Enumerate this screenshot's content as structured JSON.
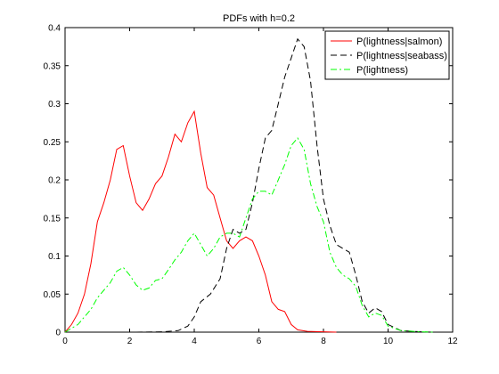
{
  "chart_data": {
    "type": "line",
    "title": "PDFs with h=0.2",
    "xlabel": "",
    "ylabel": "",
    "xlim": [
      0,
      12
    ],
    "ylim": [
      0,
      0.4
    ],
    "xticks": [
      "0",
      "2",
      "4",
      "6",
      "8",
      "10",
      "12"
    ],
    "yticks": [
      "0",
      "0.05",
      "0.1",
      "0.15",
      "0.2",
      "0.25",
      "0.3",
      "0.35",
      "0.4"
    ],
    "grid": false,
    "legend_position": "top-right",
    "series": [
      {
        "name": "P(lightness|salmon)",
        "color": "#ff0000",
        "dash": "solid",
        "x": [
          0,
          0.2,
          0.4,
          0.6,
          0.8,
          1.0,
          1.2,
          1.4,
          1.6,
          1.8,
          2.0,
          2.2,
          2.4,
          2.6,
          2.8,
          3.0,
          3.2,
          3.4,
          3.6,
          3.8,
          4.0,
          4.2,
          4.4,
          4.6,
          4.8,
          5.0,
          5.2,
          5.4,
          5.6,
          5.8,
          6.0,
          6.2,
          6.4,
          6.6,
          6.8,
          7.0,
          7.2,
          7.5,
          8.0,
          8.4
        ],
        "y": [
          0,
          0.01,
          0.025,
          0.05,
          0.09,
          0.145,
          0.17,
          0.2,
          0.24,
          0.245,
          0.205,
          0.17,
          0.16,
          0.175,
          0.195,
          0.205,
          0.23,
          0.26,
          0.25,
          0.275,
          0.29,
          0.235,
          0.19,
          0.18,
          0.15,
          0.12,
          0.11,
          0.12,
          0.125,
          0.12,
          0.1,
          0.075,
          0.04,
          0.03,
          0.027,
          0.01,
          0.003,
          0.001,
          0.0005,
          0
        ]
      },
      {
        "name": "P(lightness|seabass)",
        "color": "#000000",
        "dash": "dashed",
        "x": [
          2.2,
          3.0,
          3.5,
          3.8,
          4.0,
          4.2,
          4.5,
          4.8,
          5.0,
          5.2,
          5.4,
          5.6,
          5.8,
          6.0,
          6.2,
          6.4,
          6.6,
          6.8,
          7.0,
          7.2,
          7.4,
          7.6,
          7.8,
          8.0,
          8.2,
          8.4,
          8.6,
          8.8,
          9.0,
          9.2,
          9.4,
          9.6,
          9.8,
          10.0,
          10.4,
          11.0,
          11.4
        ],
        "y": [
          0,
          0.0005,
          0.002,
          0.008,
          0.02,
          0.04,
          0.05,
          0.07,
          0.11,
          0.135,
          0.13,
          0.135,
          0.17,
          0.215,
          0.255,
          0.265,
          0.3,
          0.335,
          0.36,
          0.385,
          0.375,
          0.33,
          0.245,
          0.175,
          0.14,
          0.115,
          0.11,
          0.105,
          0.075,
          0.04,
          0.025,
          0.032,
          0.027,
          0.01,
          0.002,
          0.0005,
          0
        ]
      },
      {
        "name": "P(lightness)",
        "color": "#00ff00",
        "dash": "dashdot",
        "x": [
          0,
          0.4,
          0.8,
          1.0,
          1.2,
          1.4,
          1.6,
          1.8,
          2.0,
          2.2,
          2.4,
          2.6,
          2.8,
          3.0,
          3.2,
          3.4,
          3.6,
          3.8,
          4.0,
          4.2,
          4.4,
          4.6,
          4.8,
          5.0,
          5.2,
          5.4,
          5.6,
          5.8,
          6.0,
          6.2,
          6.4,
          6.6,
          6.8,
          7.0,
          7.2,
          7.4,
          7.6,
          7.8,
          8.0,
          8.2,
          8.4,
          8.6,
          8.8,
          9.0,
          9.2,
          9.4,
          9.6,
          9.8,
          10.0,
          10.4,
          11.0,
          11.4
        ],
        "y": [
          0,
          0.01,
          0.03,
          0.045,
          0.055,
          0.065,
          0.08,
          0.085,
          0.075,
          0.062,
          0.055,
          0.058,
          0.068,
          0.07,
          0.082,
          0.095,
          0.105,
          0.12,
          0.13,
          0.115,
          0.1,
          0.11,
          0.125,
          0.13,
          0.13,
          0.125,
          0.15,
          0.175,
          0.185,
          0.185,
          0.18,
          0.2,
          0.22,
          0.245,
          0.255,
          0.24,
          0.195,
          0.165,
          0.145,
          0.105,
          0.085,
          0.075,
          0.07,
          0.06,
          0.035,
          0.02,
          0.025,
          0.022,
          0.008,
          0.002,
          0.0005,
          0
        ]
      }
    ]
  }
}
